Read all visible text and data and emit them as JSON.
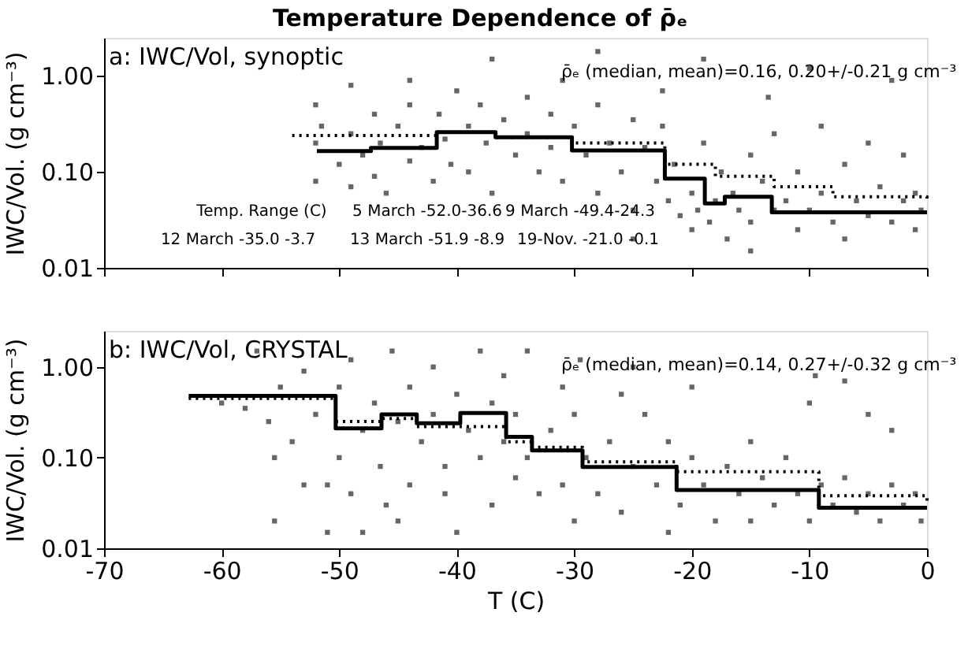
{
  "chart_data": [
    {
      "type": "scatter",
      "title": "Temperature Dependence of ρ̄ₑ",
      "ylabel": "IWC/Vol. (g cm⁻³)",
      "log": "y",
      "tick_labels": "y",
      "xlim": [
        -70,
        0
      ],
      "xticks": [
        -70,
        -60,
        -50,
        -40,
        -30,
        -20,
        -10,
        0
      ],
      "ylim": [
        0.01,
        2.5
      ],
      "yticks": [
        {
          "value": 0.01,
          "label": "0.01"
        },
        {
          "value": 0.1,
          "label": "0.10"
        },
        {
          "value": 1,
          "label": "1.00"
        }
      ],
      "annotations": [
        "a: IWC/Vol, synoptic",
        "ρ̄ₑ (median, mean)=0.16, 0.20+/-0.21 g cm⁻³",
        "Temp. Range (C)",
        "5 March -52.0-36.6",
        "9 March -49.4-24.3",
        "12 March -35.0 -3.7",
        "13 March -51.9 -8.9",
        "19-Nov. -21.0 -0.1"
      ],
      "series": [
        {
          "color": "#666666",
          "marker": "square",
          "x": [
            -52,
            -52,
            -52,
            -51.5,
            -50,
            -49,
            -49,
            -49,
            -48,
            -47,
            -47,
            -46.5,
            -46,
            -45,
            -44,
            -44,
            -43,
            -42,
            -41.5,
            -41,
            -40.5,
            -40,
            -39,
            -39,
            -38,
            -37.5,
            -37,
            -37,
            -36,
            -35,
            -34,
            -34,
            -33,
            -32,
            -32,
            -31,
            -31,
            -30,
            -29,
            -28,
            -28,
            -27,
            -26,
            -25,
            -25,
            -24,
            -23,
            -22.5,
            -22.5,
            -22,
            -21.5,
            -21,
            -20,
            -20,
            -19.5,
            -19,
            -19,
            -18.5,
            -18,
            -17.5,
            -17,
            -16.5,
            -16,
            -15,
            -15,
            -14,
            -13.5,
            -13,
            -13,
            -12,
            -11,
            -11,
            -10,
            -9,
            -9,
            -8,
            -7,
            -7,
            -6,
            -5,
            -5,
            -4,
            -3,
            -3,
            -2,
            -2,
            -1,
            -1,
            -0.5,
            -10,
            -25,
            -15,
            -28,
            -44
          ],
          "values": [
            0.5,
            0.2,
            0.08,
            0.3,
            0.12,
            0.25,
            0.8,
            0.07,
            0.15,
            0.4,
            0.09,
            0.2,
            0.06,
            0.3,
            0.13,
            0.5,
            0.18,
            0.08,
            0.4,
            0.22,
            0.12,
            0.7,
            0.3,
            0.1,
            0.5,
            0.2,
            1.5,
            0.06,
            0.35,
            0.15,
            0.6,
            0.25,
            0.1,
            0.4,
            0.18,
            0.9,
            0.08,
            0.3,
            0.15,
            0.06,
            0.5,
            0.2,
            0.1,
            0.35,
            0.04,
            0.18,
            0.08,
            0.7,
            0.3,
            0.05,
            0.12,
            0.035,
            0.06,
            0.025,
            0.04,
            1.5,
            0.2,
            0.03,
            0.05,
            0.1,
            0.02,
            0.06,
            0.04,
            0.15,
            0.03,
            0.08,
            0.6,
            0.25,
            0.04,
            0.05,
            0.1,
            0.025,
            0.04,
            0.3,
            0.06,
            0.03,
            0.12,
            0.02,
            0.05,
            0.2,
            0.035,
            0.07,
            0.03,
            0.9,
            0.05,
            0.15,
            0.025,
            0.06,
            0.04,
            1.2,
            0.02,
            0.015,
            1.8,
            0.9
          ]
        },
        {
          "type": "step",
          "color": "#000000",
          "line_style": "solid",
          "x": [
            -51.9,
            -47.3,
            -41.7,
            -36.7,
            -30.2,
            -22.3,
            -18.9,
            -17.2,
            -13.2,
            0
          ],
          "values": [
            0.165,
            0.178,
            0.26,
            0.23,
            0.167,
            0.085,
            0.047,
            0.055,
            0.038,
            0.038
          ]
        },
        {
          "type": "step",
          "color": "#000000",
          "line_style": "dotted",
          "x": [
            -54,
            -41.7,
            -36.7,
            -30.2,
            -22.3,
            -18,
            -13,
            -8,
            0
          ],
          "values": [
            0.24,
            0.26,
            0.23,
            0.2,
            0.12,
            0.09,
            0.07,
            0.055,
            0.05
          ]
        }
      ]
    },
    {
      "type": "scatter",
      "xlabel": "T (C)",
      "ylabel": "IWC/Vol. (g cm⁻³)",
      "log": "y",
      "xlim": [
        -70,
        0
      ],
      "xticks": [
        -70,
        -60,
        -50,
        -40,
        -30,
        -20,
        -10,
        0
      ],
      "ylim": [
        0.01,
        2.5
      ],
      "yticks": [
        {
          "value": 0.01,
          "label": "0.01"
        },
        {
          "value": 0.1,
          "label": "0.10"
        },
        {
          "value": 1,
          "label": "1.00"
        }
      ],
      "annotations": [
        "b: IWC/Vol, CRYSTAL",
        "ρ̄ₑ (median, mean)=0.14, 0.27+/-0.32 g cm⁻³"
      ],
      "series": [
        {
          "color": "#666666",
          "marker": "square",
          "x": [
            -60,
            -58,
            -57,
            -56,
            -55.5,
            -55.5,
            -55,
            -54,
            -53,
            -52,
            -51,
            -51,
            -50,
            -50,
            -49,
            -49,
            -48,
            -48,
            -47,
            -46.5,
            -46,
            -45.5,
            -45,
            -44,
            -44,
            -43,
            -42,
            -42,
            -41,
            -41,
            -40,
            -40,
            -39,
            -38,
            -38,
            -37,
            -37,
            -36,
            -36,
            -35,
            -35,
            -34,
            -34,
            -33,
            -32,
            -31,
            -31,
            -30,
            -30,
            -29.5,
            -29,
            -28,
            -27,
            -26,
            -26,
            -25,
            -24,
            -23,
            -22,
            -22,
            -21,
            -20,
            -20,
            -19,
            -18,
            -17,
            -16,
            -15,
            -15,
            -14,
            -13,
            -12,
            -11,
            -10,
            -10,
            -9.5,
            -9,
            -8,
            -7,
            -6,
            -5,
            -5,
            -4,
            -3,
            -2,
            -1,
            -0.5,
            -7,
            -3,
            -25,
            -45,
            -53
          ],
          "values": [
            0.4,
            0.35,
            1.5,
            0.25,
            0.1,
            0.02,
            0.6,
            0.15,
            0.9,
            0.3,
            0.05,
            0.015,
            0.6,
            0.1,
            0.04,
            1.2,
            0.2,
            0.015,
            0.4,
            0.08,
            0.03,
            1.5,
            0.25,
            0.05,
            0.6,
            0.15,
            1.0,
            0.3,
            0.04,
            0.08,
            0.5,
            0.015,
            0.2,
            1.5,
            0.1,
            0.4,
            0.03,
            0.8,
            0.15,
            0.06,
            0.3,
            1.5,
            0.1,
            0.04,
            0.2,
            0.6,
            0.05,
            0.3,
            0.02,
            1.2,
            0.1,
            0.04,
            0.15,
            0.5,
            0.025,
            0.08,
            0.3,
            0.05,
            0.15,
            0.015,
            0.03,
            0.1,
            0.6,
            0.05,
            0.02,
            0.08,
            0.04,
            0.15,
            0.02,
            0.06,
            0.03,
            0.1,
            0.04,
            0.4,
            0.02,
            0.8,
            0.05,
            0.03,
            0.06,
            0.025,
            0.3,
            0.04,
            0.02,
            0.05,
            0.03,
            0.04,
            0.02,
            0.7,
            0.2,
            1.0,
            0.02,
            0.05
          ]
        },
        {
          "type": "step",
          "color": "#000000",
          "line_style": "solid",
          "x": [
            -62.8,
            -50.3,
            -46.4,
            -43.4,
            -39.7,
            -35.8,
            -33.6,
            -29.3,
            -21.3,
            -9.2,
            0
          ],
          "values": [
            0.48,
            0.21,
            0.3,
            0.24,
            0.31,
            0.17,
            0.12,
            0.079,
            0.044,
            0.028,
            0.028
          ]
        },
        {
          "type": "step",
          "color": "#000000",
          "line_style": "dotted",
          "x": [
            -62.8,
            -50.3,
            -46.4,
            -43.4,
            -39.7,
            -35.8,
            -33.6,
            -29.3,
            -21.3,
            -9.2,
            0
          ],
          "values": [
            0.45,
            0.25,
            0.27,
            0.22,
            0.22,
            0.15,
            0.13,
            0.09,
            0.07,
            0.038,
            0.03
          ]
        }
      ]
    }
  ]
}
